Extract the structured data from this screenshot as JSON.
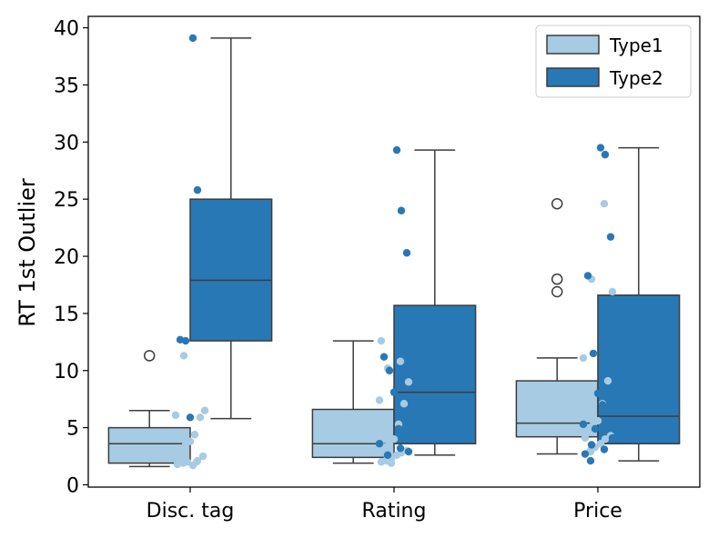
{
  "chart_data": {
    "type": "boxplot",
    "title": "",
    "xlabel": "",
    "ylabel": "RT 1st Outlier",
    "ylim": [
      -0.2,
      41
    ],
    "yticks": [
      0,
      5,
      10,
      15,
      20,
      25,
      30,
      35,
      40
    ],
    "categories": [
      "Disc. tag",
      "Rating",
      "Price"
    ],
    "legend": {
      "position": "top-right",
      "entries": [
        "Type1",
        "Type2"
      ]
    },
    "colors": {
      "Type1": "#a6cbe3",
      "Type2": "#2878b5",
      "edge": "#3c3c3c"
    },
    "series": [
      {
        "name": "Type1",
        "boxes": [
          {
            "whislo": 1.6,
            "q1": 1.9,
            "med": 3.6,
            "q3": 5.0,
            "whishi": 6.5,
            "fliers": [
              11.3
            ]
          },
          {
            "whislo": 1.9,
            "q1": 2.4,
            "med": 3.6,
            "q3": 6.6,
            "whishi": 12.6,
            "fliers": []
          },
          {
            "whislo": 2.7,
            "q1": 4.2,
            "med": 5.4,
            "q3": 9.1,
            "whishi": 11.1,
            "fliers": [
              24.6,
              18.0,
              16.9
            ]
          }
        ],
        "points": [
          [
            1.8,
            1.9,
            2.0,
            1.7,
            2.1,
            2.5,
            3.1,
            3.5,
            3.8,
            4.4,
            5.9,
            6.1,
            6.5,
            11.3,
            2.0,
            1.8
          ],
          [
            2.0,
            2.2,
            2.3,
            2.6,
            2.8,
            3.0,
            3.3,
            3.6,
            4.0,
            5.3,
            7.1,
            7.4,
            9.0,
            10.2,
            10.8,
            12.6,
            2.1,
            1.9
          ],
          [
            2.7,
            3.0,
            3.3,
            3.6,
            4.0,
            4.3,
            4.8,
            5.3,
            5.6,
            7.1,
            9.1,
            11.1,
            16.9,
            18.0,
            24.6,
            4.1,
            2.9
          ]
        ]
      },
      {
        "name": "Type2",
        "boxes": [
          {
            "whislo": 5.8,
            "q1": 12.6,
            "med": 17.9,
            "q3": 25.0,
            "whishi": 39.1,
            "fliers": []
          },
          {
            "whislo": 2.6,
            "q1": 3.6,
            "med": 8.1,
            "q3": 15.7,
            "whishi": 29.3,
            "fliers": []
          },
          {
            "whislo": 2.1,
            "q1": 3.6,
            "med": 6.0,
            "q3": 16.6,
            "whishi": 29.5,
            "fliers": []
          }
        ],
        "points": [
          [
            39.1,
            25.8,
            23.1,
            12.7,
            12.6,
            5.9
          ],
          [
            29.3,
            24.0,
            20.3,
            11.2,
            10.0,
            8.1,
            4.9,
            4.0,
            3.6,
            2.9,
            2.6,
            3.2
          ],
          [
            29.5,
            28.9,
            21.7,
            18.3,
            11.5,
            8.0,
            7.0,
            6.6,
            5.3,
            4.1,
            3.5,
            3.1,
            2.7,
            2.1,
            4.9
          ]
        ]
      }
    ]
  }
}
